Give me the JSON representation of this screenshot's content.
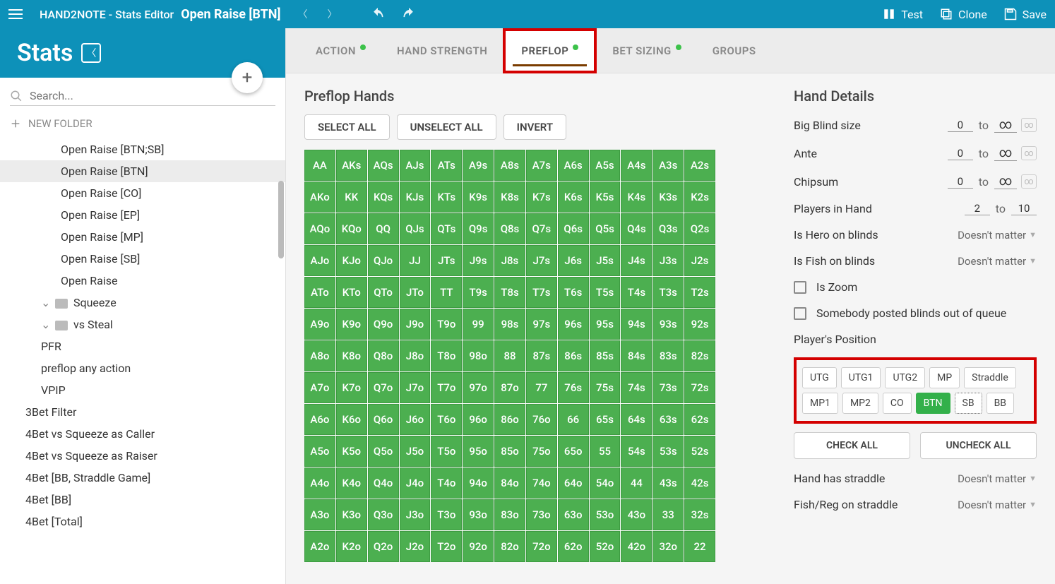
{
  "topbar": {
    "brand": "HAND2NOTE - Stats Editor",
    "title": "Open Raise [BTN]",
    "test": "Test",
    "clone": "Clone",
    "save": "Save"
  },
  "sidebar": {
    "heading": "Stats",
    "search_placeholder": "Search...",
    "new_folder": "NEW FOLDER",
    "items": [
      {
        "label": "Open Raise [BTN;SB]",
        "depth": 3
      },
      {
        "label": "Open Raise [BTN]",
        "depth": 3,
        "active": true
      },
      {
        "label": "Open Raise [CO]",
        "depth": 3
      },
      {
        "label": "Open Raise [EP]",
        "depth": 3
      },
      {
        "label": "Open Raise [MP]",
        "depth": 3
      },
      {
        "label": "Open Raise [SB]",
        "depth": 3
      },
      {
        "label": "Open Raise",
        "depth": 3
      },
      {
        "label": "Squeeze",
        "depth": 2,
        "folder": true,
        "expanded": true
      },
      {
        "label": "vs Steal",
        "depth": 2,
        "folder": true,
        "expanded": true
      },
      {
        "label": "PFR",
        "depth": 2
      },
      {
        "label": "preflop any action",
        "depth": 2
      },
      {
        "label": "VPIP",
        "depth": 2
      },
      {
        "label": "3Bet Filter",
        "depth": 1
      },
      {
        "label": "4Bet vs Squeeze as Caller",
        "depth": 1
      },
      {
        "label": "4Bet vs Squeeze as Raiser",
        "depth": 1
      },
      {
        "label": "4Bet [BB, Straddle Game]",
        "depth": 1
      },
      {
        "label": "4Bet [BB]",
        "depth": 1
      },
      {
        "label": "4Bet [Total]",
        "depth": 1
      }
    ]
  },
  "tabs": [
    {
      "label": "ACTION",
      "dot": true
    },
    {
      "label": "HAND STRENGTH"
    },
    {
      "label": "PREFLOP",
      "dot": true,
      "active": true,
      "highlight": true
    },
    {
      "label": "BET SIZING",
      "dot": true
    },
    {
      "label": "GROUPS"
    }
  ],
  "hands": {
    "title": "Preflop Hands",
    "buttons": {
      "select": "SELECT ALL",
      "unselect": "UNSELECT ALL",
      "invert": "INVERT"
    },
    "ranks": [
      "A",
      "K",
      "Q",
      "J",
      "T",
      "9",
      "8",
      "7",
      "6",
      "5",
      "4",
      "3",
      "2"
    ],
    "cell_bg": "#4caf50"
  },
  "details": {
    "title": "Hand Details",
    "rows": {
      "bb": {
        "label": "Big Blind size",
        "from": "0",
        "to": "to",
        "inf": "∞"
      },
      "ante": {
        "label": "Ante",
        "from": "0",
        "to": "to",
        "inf": "∞"
      },
      "chipsum": {
        "label": "Chipsum",
        "from": "0",
        "to": "to",
        "inf": "∞"
      },
      "players": {
        "label": "Players in Hand",
        "from": "2",
        "to": "to",
        "max": "10"
      },
      "hero_blinds": {
        "label": "Is Hero on blinds",
        "value": "Doesn't matter"
      },
      "fish_blinds": {
        "label": "Is Fish on blinds",
        "value": "Doesn't matter"
      },
      "is_zoom": {
        "label": "Is Zoom"
      },
      "posted_out": {
        "label": "Somebody posted blinds out of queue"
      },
      "position_label": "Player's Position",
      "positions": [
        {
          "label": "UTG"
        },
        {
          "label": "UTG1"
        },
        {
          "label": "UTG2"
        },
        {
          "label": "MP"
        },
        {
          "label": "Straddle"
        },
        {
          "label": "MP1"
        },
        {
          "label": "MP2"
        },
        {
          "label": "CO"
        },
        {
          "label": "BTN",
          "selected": true
        },
        {
          "label": "SB",
          "dotted": true
        },
        {
          "label": "BB"
        }
      ],
      "check_all": "CHECK ALL",
      "uncheck_all": "UNCHECK ALL",
      "straddle": {
        "label": "Hand has straddle",
        "value": "Doesn't matter"
      },
      "fish_reg": {
        "label": "Fish/Reg on straddle",
        "value": "Doesn't matter"
      }
    }
  }
}
